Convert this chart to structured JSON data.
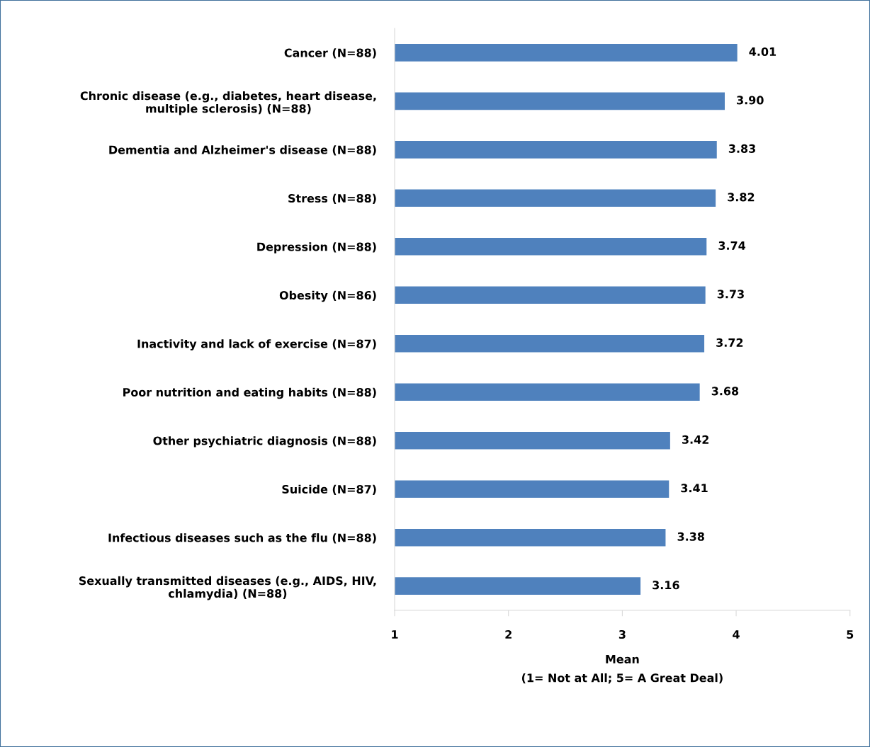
{
  "chart_data": {
    "type": "bar",
    "orientation": "horizontal",
    "categories": [
      "Cancer (N=88)",
      "Chronic disease (e.g., diabetes, heart disease,\nmultiple sclerosis) (N=88)",
      "Dementia and Alzheimer's disease (N=88)",
      "Stress (N=88)",
      "Depression (N=88)",
      "Obesity (N=86)",
      "Inactivity and lack of exercise (N=87)",
      "Poor nutrition and eating habits (N=88)",
      "Other psychiatric diagnosis (N=88)",
      "Suicide (N=87)",
      "Infectious diseases such as the flu (N=88)",
      "Sexually transmitted diseases (e.g., AIDS, HIV,\nchlamydia) (N=88)"
    ],
    "values": [
      4.01,
      3.9,
      3.83,
      3.82,
      3.74,
      3.73,
      3.72,
      3.68,
      3.42,
      3.41,
      3.38,
      3.16
    ],
    "value_labels": [
      "4.01",
      "3.90",
      "3.83",
      "3.82",
      "3.74",
      "3.73",
      "3.72",
      "3.68",
      "3.42",
      "3.41",
      "3.38",
      "3.16"
    ],
    "color": "#4f81bd",
    "xlim": [
      1,
      5
    ],
    "xticks": [
      1,
      2,
      3,
      4,
      5
    ],
    "xlabel": "Mean\n(1= Not at All; 5= A Great Deal)",
    "grid": false,
    "legend": false
  }
}
